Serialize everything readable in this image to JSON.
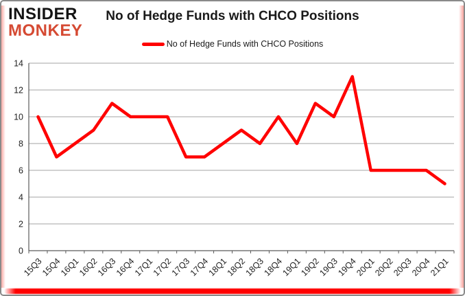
{
  "logo": {
    "line1": "INSIDER",
    "line2": "MONKEY"
  },
  "header": {
    "title": "No of Hedge Funds with CHCO Positions"
  },
  "legend": {
    "label": "No of Hedge Funds with CHCO Positions"
  },
  "colors": {
    "line": "#ff0000",
    "logo_accent": "#d54a33",
    "grid": "#a3a3a3",
    "axis": "#5a5a5a",
    "tick_text": "#1f1f1f",
    "frame_border": "#8a8a8a",
    "bottom_bar": "#ff0000"
  },
  "chart_data": {
    "type": "line",
    "title": "No of Hedge Funds with CHCO Positions",
    "xlabel": "",
    "ylabel": "",
    "categories": [
      "15Q3",
      "15Q4",
      "16Q1",
      "16Q2",
      "16Q3",
      "16Q4",
      "17Q1",
      "17Q2",
      "17Q3",
      "17Q4",
      "18Q1",
      "18Q2",
      "18Q3",
      "18Q4",
      "19Q1",
      "19Q2",
      "19Q3",
      "19Q4",
      "20Q1",
      "20Q2",
      "20Q3",
      "20Q4",
      "21Q1"
    ],
    "series": [
      {
        "name": "No of Hedge Funds with CHCO Positions",
        "values": [
          10,
          7,
          8,
          9,
          11,
          10,
          10,
          10,
          7,
          7,
          8,
          9,
          8,
          10,
          8,
          11,
          10,
          13,
          6,
          6,
          6,
          6,
          5
        ]
      }
    ],
    "ylim": [
      0,
      14
    ],
    "yticks": [
      0,
      2,
      4,
      6,
      8,
      10,
      12,
      14
    ],
    "grid": true,
    "legend_position": "top"
  }
}
